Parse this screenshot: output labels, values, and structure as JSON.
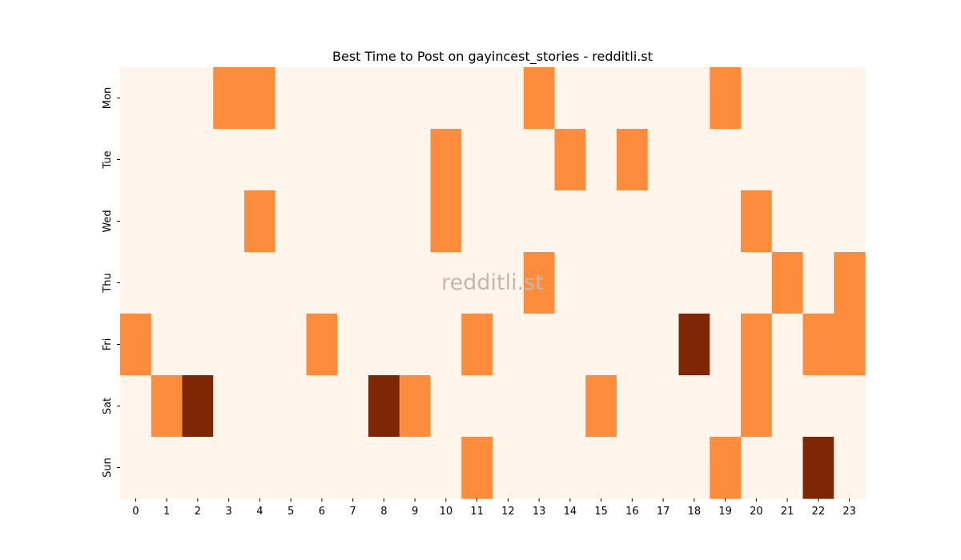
{
  "chart_data": {
    "type": "heatmap",
    "title": "Best Time to Post on gayincest_stories - redditli.st",
    "watermark": "redditli.st",
    "x": [
      "0",
      "1",
      "2",
      "3",
      "4",
      "5",
      "6",
      "7",
      "8",
      "9",
      "10",
      "11",
      "12",
      "13",
      "14",
      "15",
      "16",
      "17",
      "18",
      "19",
      "20",
      "21",
      "22",
      "23"
    ],
    "y": [
      "Mon",
      "Tue",
      "Wed",
      "Thu",
      "Fri",
      "Sat",
      "Sun"
    ],
    "values": [
      [
        0,
        0,
        0,
        1,
        1,
        0,
        0,
        0,
        0,
        0,
        0,
        0,
        0,
        1,
        0,
        0,
        0,
        0,
        0,
        1,
        0,
        0,
        0,
        0
      ],
      [
        0,
        0,
        0,
        0,
        0,
        0,
        0,
        0,
        0,
        0,
        1,
        0,
        0,
        0,
        1,
        0,
        1,
        0,
        0,
        0,
        0,
        0,
        0,
        0
      ],
      [
        0,
        0,
        0,
        0,
        1,
        0,
        0,
        0,
        0,
        0,
        1,
        0,
        0,
        0,
        0,
        0,
        0,
        0,
        0,
        0,
        1,
        0,
        0,
        0
      ],
      [
        0,
        0,
        0,
        0,
        0,
        0,
        0,
        0,
        0,
        0,
        0,
        0,
        0,
        1,
        0,
        0,
        0,
        0,
        0,
        0,
        0,
        1,
        0,
        1
      ],
      [
        1,
        0,
        0,
        0,
        0,
        0,
        1,
        0,
        0,
        0,
        0,
        1,
        0,
        0,
        0,
        0,
        0,
        0,
        2,
        0,
        1,
        0,
        1,
        1
      ],
      [
        0,
        1,
        2,
        0,
        0,
        0,
        0,
        0,
        2,
        1,
        0,
        0,
        0,
        0,
        0,
        1,
        0,
        0,
        0,
        0,
        1,
        0,
        0,
        0
      ],
      [
        0,
        0,
        0,
        0,
        0,
        0,
        0,
        0,
        0,
        0,
        0,
        1,
        0,
        0,
        0,
        0,
        0,
        0,
        0,
        1,
        0,
        0,
        2,
        0
      ]
    ],
    "colormap": "Oranges",
    "vmin": 0,
    "vmax": 2,
    "colors": {
      "0": "#fff5eb",
      "1": "#fd8d3c",
      "2": "#7f2704"
    },
    "colorbar": false
  }
}
